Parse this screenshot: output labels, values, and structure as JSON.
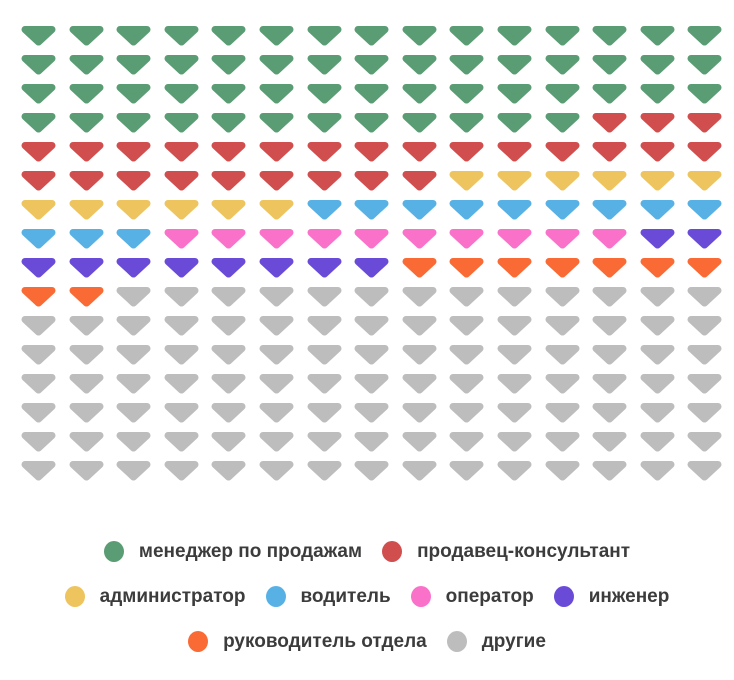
{
  "chart_data": {
    "type": "pictogram",
    "icon": "rounded-inverted-triangle",
    "grid": {
      "columns": 15,
      "rows": 16,
      "total_icons": 240
    },
    "fill_order": "row-major-left-to-right-top-to-bottom",
    "categories": [
      {
        "label": "менеджер по продажам",
        "count": 57,
        "color": "#5a9c73"
      },
      {
        "label": "продавец-консультант",
        "count": 27,
        "color": "#d14e4e"
      },
      {
        "label": "администратор",
        "count": 12,
        "color": "#edc45e"
      },
      {
        "label": "водитель",
        "count": 12,
        "color": "#57b1e4"
      },
      {
        "label": "оператор",
        "count": 10,
        "color": "#f971c9"
      },
      {
        "label": "инженер",
        "count": 10,
        "color": "#6a4bd8"
      },
      {
        "label": "руководитель отдела",
        "count": 9,
        "color": "#f96a35"
      },
      {
        "label": "другие",
        "count": 103,
        "color": "#bdbdbd"
      }
    ],
    "legend": {
      "position": "bottom",
      "marker": "circle",
      "rows": [
        [
          0,
          1
        ],
        [
          2,
          3,
          4,
          5
        ],
        [
          6,
          7
        ]
      ]
    },
    "label_text_color": "#3c3c3c",
    "background_color": "#ffffff"
  }
}
